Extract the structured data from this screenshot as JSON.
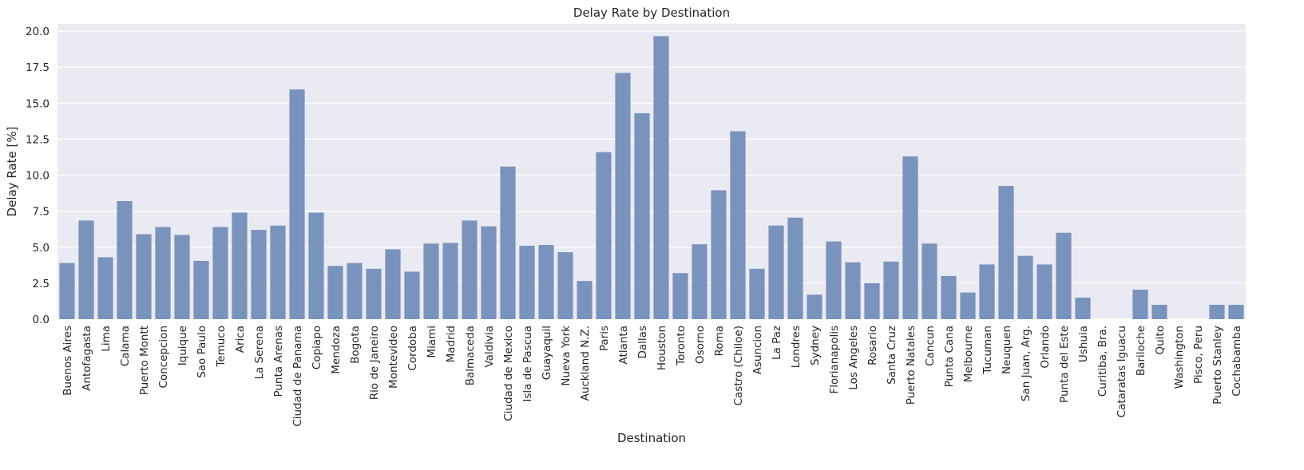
{
  "chart_data": {
    "type": "bar",
    "title": "Delay Rate by Destination",
    "xlabel": "Destination",
    "ylabel": "Delay Rate [%]",
    "ylim": [
      0,
      20.5
    ],
    "yticks": [
      "0.0",
      "2.5",
      "5.0",
      "7.5",
      "10.0",
      "12.5",
      "15.0",
      "17.5",
      "20.0"
    ],
    "grid": true,
    "colors": {
      "bar": "#7a93bd",
      "plot_background": "#eaeaf2",
      "gridline": "#ffffff"
    },
    "categories": [
      "Buenos Aires",
      "Antofagasta",
      "Lima",
      "Calama",
      "Puerto Montt",
      "Concepcion",
      "Iquique",
      "Sao Paulo",
      "Temuco",
      "Arica",
      "La Serena",
      "Punta Arenas",
      "Ciudad de Panama",
      "Copiapo",
      "Mendoza",
      "Bogota",
      "Rio de Janeiro",
      "Montevideo",
      "Cordoba",
      "Miami",
      "Madrid",
      "Balmaceda",
      "Valdivia",
      "Ciudad de Mexico",
      "Isla de Pascua",
      "Guayaquil",
      "Nueva York",
      "Auckland N.Z.",
      "Paris",
      "Atlanta",
      "Dallas",
      "Houston",
      "Toronto",
      "Osorno",
      "Roma",
      "Castro (Chiloe)",
      "Asuncion",
      "La Paz",
      "Londres",
      "Sydney",
      "Florianapolis",
      "Los Angeles",
      "Rosario",
      "Santa Cruz",
      "Puerto Natales",
      "Cancun",
      "Punta Cana",
      "Melbourne",
      "Tucuman",
      "Neuquen",
      "San Juan, Arg.",
      "Orlando",
      "Punta del Este",
      "Ushuia",
      "Curitiba, Bra.",
      "Cataratas Iguacu",
      "Bariloche",
      "Quito",
      "Washington",
      "Pisco, Peru",
      "Puerto Stanley",
      "Cochabamba"
    ],
    "values": [
      3.9,
      6.85,
      4.3,
      8.2,
      5.9,
      6.4,
      5.85,
      4.05,
      6.4,
      7.4,
      6.2,
      6.5,
      15.95,
      7.4,
      3.7,
      3.9,
      3.5,
      4.85,
      3.3,
      5.25,
      5.3,
      6.85,
      6.45,
      10.6,
      5.1,
      5.15,
      4.65,
      2.65,
      11.6,
      17.1,
      14.3,
      19.65,
      3.2,
      5.2,
      8.95,
      13.05,
      3.5,
      6.5,
      7.05,
      1.7,
      5.4,
      3.95,
      2.5,
      4.0,
      11.3,
      5.25,
      3.0,
      1.85,
      3.8,
      9.25,
      4.4,
      3.8,
      6.0,
      1.5,
      0.0,
      0.0,
      2.05,
      1.0,
      0.0,
      0.0,
      1.0,
      1.0
    ]
  }
}
